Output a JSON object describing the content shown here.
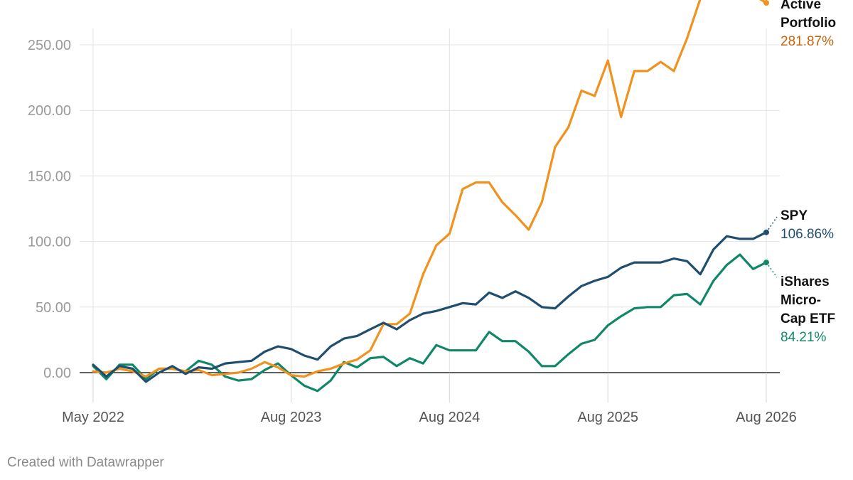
{
  "chart_data": {
    "type": "line",
    "title": "",
    "xlabel": "",
    "ylabel": "",
    "ylim": [
      -20,
      290
    ],
    "yticks": [
      "0.00",
      "50.00",
      "100.00",
      "150.00",
      "200.00",
      "250.00"
    ],
    "ytick_values": [
      0,
      50,
      100,
      150,
      200,
      250
    ],
    "xtick_labels": [
      "May 2022",
      "Aug 2023",
      "Aug 2024",
      "Aug 2025",
      "Aug 2026"
    ],
    "x": [
      "2022-05",
      "2022-06",
      "2022-07",
      "2022-08",
      "2022-09",
      "2022-10",
      "2022-11",
      "2022-12",
      "2023-01",
      "2023-02",
      "2023-03",
      "2023-04",
      "2023-05",
      "2023-06",
      "2023-07",
      "2023-08",
      "2023-09",
      "2023-10",
      "2023-11",
      "2023-12",
      "2024-01",
      "2024-02",
      "2024-03",
      "2024-04",
      "2024-05",
      "2024-06",
      "2024-07",
      "2024-08",
      "2024-09",
      "2024-10",
      "2024-11",
      "2024-12",
      "2025-01",
      "2025-02",
      "2025-03",
      "2025-04",
      "2025-05",
      "2025-06",
      "2025-07",
      "2025-08",
      "2025-09",
      "2025-10",
      "2025-11",
      "2025-12",
      "2026-01",
      "2026-02",
      "2026-03",
      "2026-04",
      "2026-05",
      "2026-06",
      "2026-07",
      "2026-08"
    ],
    "grid": true,
    "legend": "direct labels at line ends",
    "series": [
      {
        "name": "Active Portfolio",
        "end_label": "281.87%",
        "color": "#f0921e",
        "label_color": "#c8650a",
        "values": [
          1,
          0,
          3,
          1,
          -3,
          3,
          3,
          1,
          2,
          -2,
          -1,
          0,
          3,
          8,
          4,
          -2,
          -3,
          1,
          3,
          7,
          10,
          17,
          37,
          37,
          45,
          75,
          97,
          106,
          140,
          145,
          145,
          130,
          120,
          109,
          130,
          172,
          187,
          215,
          211,
          238,
          195,
          230,
          230,
          237,
          230,
          255,
          285,
          295,
          295,
          290,
          288,
          282
        ]
      },
      {
        "name": "SPY",
        "end_label": "106.86%",
        "color": "#1f4e6e",
        "label_color": "#1f4e6e",
        "values": [
          6,
          -3,
          5,
          3,
          -7,
          0,
          5,
          -1,
          4,
          3,
          7,
          8,
          9,
          16,
          20,
          18,
          13,
          10,
          20,
          26,
          28,
          33,
          38,
          33,
          40,
          45,
          47,
          50,
          53,
          52,
          61,
          57,
          62,
          57,
          50,
          49,
          58,
          66,
          70,
          73,
          80,
          84,
          84,
          84,
          87,
          85,
          75,
          94,
          104,
          102,
          102,
          107
        ]
      },
      {
        "name": "iShares Micro-Cap ETF",
        "end_label": "84.21%",
        "color": "#11876a",
        "label_color": "#11876a",
        "values": [
          5,
          -5,
          6,
          6,
          -5,
          3,
          3,
          1,
          9,
          6,
          -3,
          -6,
          -5,
          2,
          7,
          -2,
          -10,
          -14,
          -6,
          8,
          4,
          11,
          12,
          5,
          11,
          7,
          21,
          17,
          17,
          17,
          31,
          24,
          24,
          16,
          5,
          5,
          14,
          22,
          25,
          36,
          43,
          49,
          50,
          50,
          59,
          60,
          52,
          70,
          82,
          90,
          79,
          84
        ]
      }
    ]
  },
  "footer": {
    "credit": "Created with Datawrapper"
  }
}
